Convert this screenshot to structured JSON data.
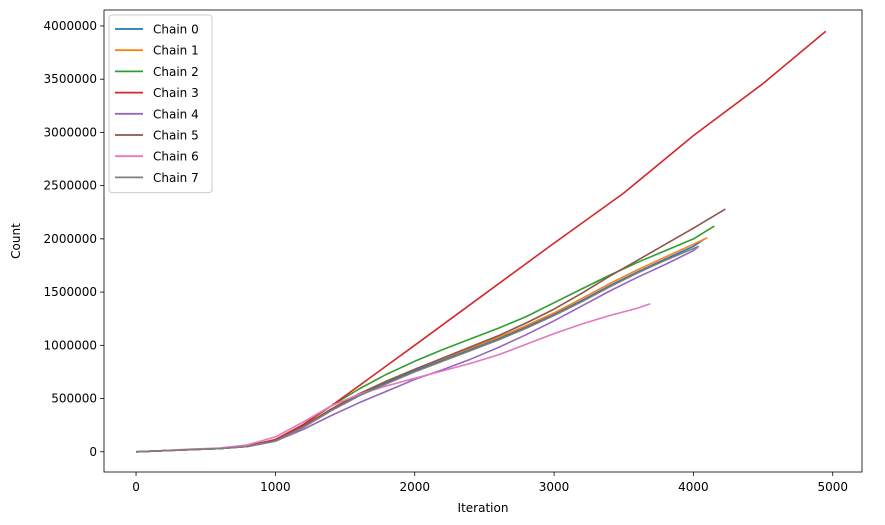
{
  "chart_data": {
    "type": "line",
    "title": "",
    "xlabel": "Iteration",
    "ylabel": "Count",
    "xlim": [
      -230,
      5210
    ],
    "ylim": [
      -190000,
      4150000
    ],
    "xticks": [
      0,
      1000,
      2000,
      3000,
      4000,
      5000
    ],
    "yticks": [
      0,
      500000,
      1000000,
      1500000,
      2000000,
      2500000,
      3000000,
      3500000,
      4000000
    ],
    "grid": false,
    "legend_position": "top-left",
    "series": [
      {
        "name": "Chain 0",
        "color": "#1f77b4",
        "x": [
          0,
          200,
          400,
          600,
          800,
          1000,
          1200,
          1400,
          1600,
          1800,
          2000,
          2200,
          2400,
          2600,
          2800,
          3000,
          3200,
          3400,
          3600,
          3800,
          4000,
          4080
        ],
        "y": [
          0,
          10000,
          20000,
          30000,
          50000,
          100000,
          230000,
          390000,
          530000,
          650000,
          760000,
          860000,
          960000,
          1060000,
          1170000,
          1290000,
          1420000,
          1560000,
          1690000,
          1810000,
          1930000,
          2000000
        ]
      },
      {
        "name": "Chain 1",
        "color": "#ff7f0e",
        "x": [
          0,
          200,
          400,
          600,
          800,
          1000,
          1200,
          1400,
          1600,
          1800,
          2000,
          2200,
          2400,
          2600,
          2800,
          3000,
          3200,
          3400,
          3600,
          3800,
          4000,
          4100
        ],
        "y": [
          0,
          10000,
          20000,
          30000,
          50000,
          105000,
          240000,
          400000,
          545000,
          665000,
          775000,
          875000,
          975000,
          1075000,
          1185000,
          1305000,
          1440000,
          1580000,
          1710000,
          1830000,
          1950000,
          2010000
        ]
      },
      {
        "name": "Chain 2",
        "color": "#2ca02c",
        "x": [
          0,
          200,
          400,
          600,
          800,
          1000,
          1200,
          1400,
          1600,
          1800,
          2000,
          2200,
          2400,
          2600,
          2800,
          3000,
          3200,
          3400,
          3600,
          3800,
          4000,
          4150
        ],
        "y": [
          0,
          10000,
          20000,
          30000,
          55000,
          110000,
          255000,
          430000,
          590000,
          730000,
          850000,
          960000,
          1060000,
          1160000,
          1270000,
          1400000,
          1530000,
          1660000,
          1780000,
          1890000,
          2000000,
          2120000
        ]
      },
      {
        "name": "Chain 3",
        "color": "#d62728",
        "x": [
          0,
          200,
          400,
          600,
          800,
          1000,
          1200,
          1400,
          1600,
          1800,
          2000,
          2500,
          3000,
          3500,
          4000,
          4500,
          4950
        ],
        "y": [
          0,
          10000,
          20000,
          30000,
          55000,
          115000,
          255000,
          430000,
          620000,
          810000,
          1000000,
          1480000,
          1960000,
          2430000,
          2970000,
          3460000,
          3950000
        ]
      },
      {
        "name": "Chain 4",
        "color": "#9467bd",
        "x": [
          0,
          200,
          400,
          600,
          800,
          1000,
          1200,
          1400,
          1600,
          1800,
          2000,
          2200,
          2400,
          2600,
          2800,
          3000,
          3200,
          3400,
          3600,
          3800,
          4000,
          4030
        ],
        "y": [
          0,
          10000,
          20000,
          30000,
          50000,
          100000,
          210000,
          340000,
          460000,
          570000,
          680000,
          770000,
          870000,
          980000,
          1100000,
          1230000,
          1370000,
          1510000,
          1640000,
          1760000,
          1890000,
          1920000
        ]
      },
      {
        "name": "Chain 5",
        "color": "#8c564b",
        "x": [
          0,
          200,
          400,
          600,
          800,
          1000,
          1200,
          1400,
          1600,
          1800,
          2000,
          2200,
          2400,
          2600,
          2800,
          3000,
          3200,
          3400,
          3600,
          3800,
          4000,
          4230
        ],
        "y": [
          0,
          10000,
          20000,
          30000,
          50000,
          105000,
          240000,
          400000,
          545000,
          665000,
          775000,
          880000,
          985000,
          1090000,
          1210000,
          1340000,
          1490000,
          1650000,
          1800000,
          1950000,
          2100000,
          2280000
        ]
      },
      {
        "name": "Chain 6",
        "color": "#e377c2",
        "x": [
          0,
          200,
          400,
          600,
          800,
          1000,
          1200,
          1400,
          1600,
          1800,
          2000,
          2200,
          2400,
          2600,
          2800,
          3000,
          3200,
          3400,
          3600,
          3690
        ],
        "y": [
          0,
          12000,
          25000,
          35000,
          65000,
          140000,
          280000,
          430000,
          540000,
          620000,
          690000,
          760000,
          830000,
          910000,
          1010000,
          1110000,
          1200000,
          1280000,
          1350000,
          1390000
        ]
      },
      {
        "name": "Chain 7",
        "color": "#7f7f7f",
        "x": [
          0,
          200,
          400,
          600,
          800,
          1000,
          1200,
          1400,
          1600,
          1800,
          2000,
          2200,
          2400,
          2600,
          2800,
          3000,
          3200,
          3400,
          3600,
          3800,
          4000,
          4040
        ],
        "y": [
          0,
          10000,
          20000,
          30000,
          50000,
          100000,
          230000,
          385000,
          525000,
          640000,
          750000,
          850000,
          950000,
          1050000,
          1160000,
          1280000,
          1410000,
          1550000,
          1680000,
          1800000,
          1910000,
          1930000
        ]
      }
    ]
  }
}
